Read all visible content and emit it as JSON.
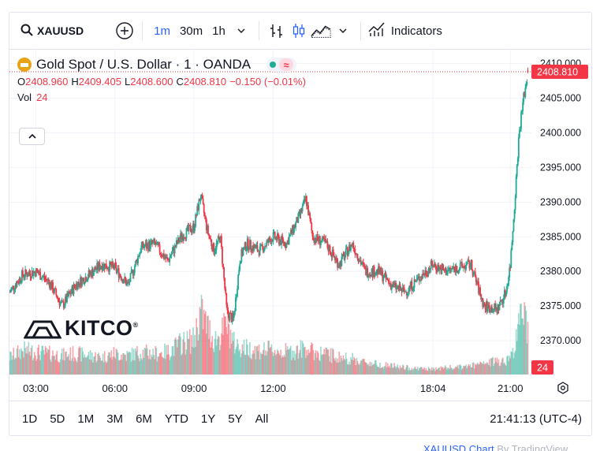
{
  "toolbar": {
    "symbol": "XAUUSD",
    "intervals": [
      "1m",
      "30m",
      "1h"
    ],
    "active_interval": "1m",
    "indicators_label": "Indicators"
  },
  "legend": {
    "title": "Gold Spot / U.S. Dollar · 1 · OANDA",
    "open_key": "O",
    "open": "2408.960",
    "high_key": "H",
    "high": "2409.405",
    "low_key": "L",
    "low": "2408.600",
    "close_key": "C",
    "close": "2408.810",
    "change": "−0.150 (−0.01%)",
    "vol_label": "Vol",
    "vol_value": "24"
  },
  "logo": {
    "text": "KITCO",
    "reg": "®"
  },
  "range_buttons": [
    "1D",
    "5D",
    "1M",
    "3M",
    "6M",
    "YTD",
    "1Y",
    "5Y",
    "All"
  ],
  "clock": "21:41:13 (UTC-4)",
  "attribution": {
    "link": "XAUUSD Chart",
    "by": "By TradingView"
  },
  "colors": {
    "up": "#22ab94",
    "down": "#f23645",
    "accent": "#2962ff",
    "grid": "#f0f3fa",
    "text": "#131722"
  },
  "chart_data": {
    "type": "line",
    "style": "candlestick",
    "ylim": [
      2365,
      2412
    ],
    "y_ticks": [
      "2410.000",
      "2405.000",
      "2400.000",
      "2395.000",
      "2390.000",
      "2385.000",
      "2380.000",
      "2375.000",
      "2370.000"
    ],
    "x_ticks": [
      "03:00",
      "06:00",
      "09:00",
      "12:00",
      "18:04",
      "21:00"
    ],
    "last_price_label": "2408.810",
    "volume_label": "24",
    "grid": true,
    "x": [
      "02:00",
      "02:30",
      "03:00",
      "03:30",
      "04:00",
      "04:30",
      "05:00",
      "05:30",
      "06:00",
      "06:30",
      "07:00",
      "07:30",
      "08:00",
      "08:30",
      "09:00",
      "09:15",
      "09:30",
      "09:45",
      "10:00",
      "10:15",
      "10:30",
      "10:45",
      "11:00",
      "11:30",
      "12:00",
      "12:30",
      "13:00",
      "13:15",
      "13:30",
      "14:00",
      "14:30",
      "15:00",
      "15:30",
      "16:00",
      "16:30",
      "17:00",
      "18:04",
      "18:30",
      "19:00",
      "19:30",
      "20:00",
      "20:30",
      "20:50",
      "21:00",
      "21:10",
      "21:20",
      "21:30",
      "21:41"
    ],
    "series": [
      {
        "values": [
          2377.0,
          2379.5,
          2380.0,
          2378.5,
          2375.0,
          2378.0,
          2379.5,
          2381.0,
          2380.5,
          2378.0,
          2383.5,
          2384.0,
          2381.5,
          2385.0,
          2386.5,
          2391.0,
          2386.0,
          2383.0,
          2385.0,
          2374.0,
          2373.0,
          2382.0,
          2384.0,
          2383.0,
          2385.0,
          2384.0,
          2388.0,
          2390.5,
          2385.0,
          2384.0,
          2381.0,
          2384.0,
          2380.0,
          2380.0,
          2378.0,
          2377.0,
          2381.0,
          2380.0,
          2380.5,
          2381.0,
          2375.0,
          2374.5,
          2377.0,
          2381.0,
          2390.0,
          2400.0,
          2405.0,
          2408.81
        ]
      }
    ],
    "volume": [
      10,
      14,
      13,
      12,
      11,
      12,
      11,
      10,
      12,
      11,
      13,
      12,
      13,
      18,
      20,
      36,
      28,
      20,
      22,
      30,
      18,
      16,
      15,
      14,
      14,
      13,
      14,
      16,
      13,
      12,
      10,
      9,
      7,
      6,
      5,
      4,
      3,
      4,
      4,
      5,
      6,
      8,
      8,
      10,
      16,
      28,
      40,
      24
    ]
  }
}
